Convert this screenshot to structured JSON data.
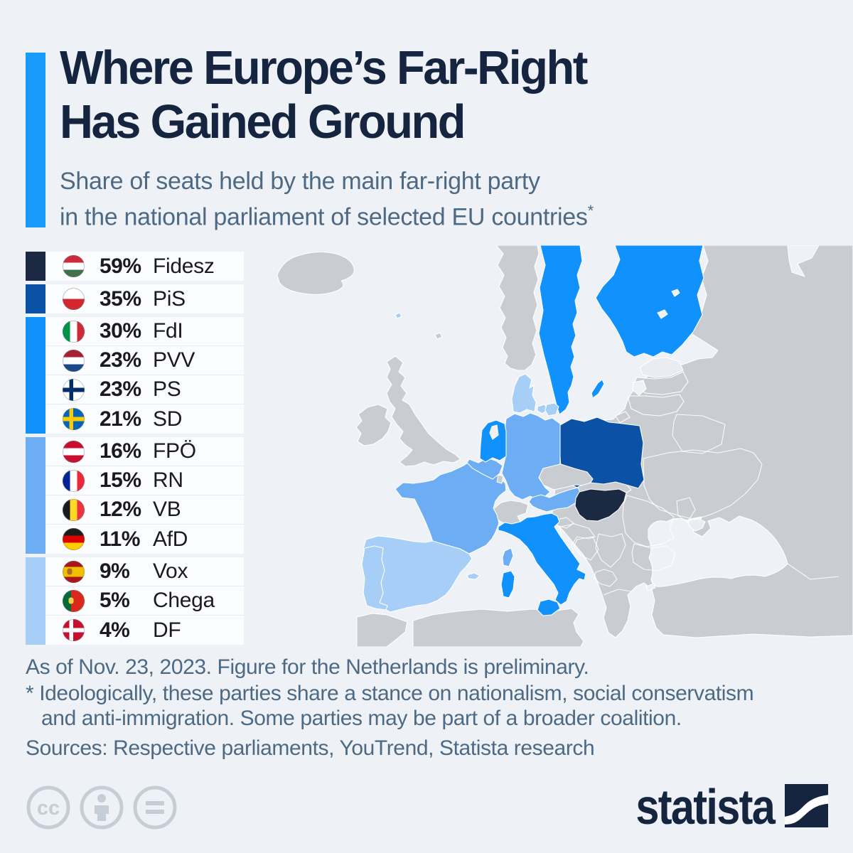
{
  "header": {
    "title_lines": [
      "Where Europe’s Far-Right",
      "Has Gained Ground"
    ],
    "subtitle_lines": [
      "Share of seats held by the main far-right party",
      "in the national parliament of selected EU countries"
    ],
    "subtitle_footnote_mark": "*"
  },
  "chart_data": {
    "type": "choropleth",
    "title": "Where Europe’s Far-Right Has Gained Ground",
    "subtitle": "Share of seats held by the main far-right party in the national parliament of selected EU countries*",
    "unit": "% of seats in national parliament",
    "entries": [
      {
        "country": "Hungary",
        "party": "Fidesz",
        "value": 59,
        "tier": "t1"
      },
      {
        "country": "Poland",
        "party": "PiS",
        "value": 35,
        "tier": "t2"
      },
      {
        "country": "Italy",
        "party": "FdI",
        "value": 30,
        "tier": "t3"
      },
      {
        "country": "Netherlands",
        "party": "PVV",
        "value": 23,
        "tier": "t3"
      },
      {
        "country": "Finland",
        "party": "PS",
        "value": 23,
        "tier": "t3"
      },
      {
        "country": "Sweden",
        "party": "SD",
        "value": 21,
        "tier": "t3"
      },
      {
        "country": "Austria",
        "party": "FPÖ",
        "value": 16,
        "tier": "t4"
      },
      {
        "country": "France",
        "party": "RN",
        "value": 15,
        "tier": "t4"
      },
      {
        "country": "Belgium",
        "party": "VB",
        "value": 12,
        "tier": "t4"
      },
      {
        "country": "Germany",
        "party": "AfD",
        "value": 11,
        "tier": "t4"
      },
      {
        "country": "Spain",
        "party": "Vox",
        "value": 9,
        "tier": "t5"
      },
      {
        "country": "Portugal",
        "party": "Chega",
        "value": 5,
        "tier": "t5"
      },
      {
        "country": "Denmark",
        "party": "DF",
        "value": 4,
        "tier": "t5"
      }
    ],
    "tier_colors": {
      "t1": "#1b2a42",
      "t2": "#0b51a5",
      "t3": "#1191fc",
      "t4": "#6cadf4",
      "t5": "#a7cef7"
    },
    "other_land_color": "#c9ccd0",
    "legend_position": "left"
  },
  "legend": {
    "rows": [
      {
        "id": "hungary",
        "percent": "59%",
        "party": "Fidesz",
        "tier": "t1",
        "flag": {
          "type": "h",
          "stripes": [
            "#ce2939",
            "#ffffff",
            "#436f4d"
          ]
        }
      },
      {
        "id": "poland",
        "percent": "35%",
        "party": "PiS",
        "tier": "t2",
        "flag": {
          "type": "h",
          "stripes": [
            "#ffffff",
            "#d22730"
          ]
        }
      },
      {
        "id": "italy",
        "percent": "30%",
        "party": "FdI",
        "tier": "t3",
        "flag": {
          "type": "v",
          "stripes": [
            "#009246",
            "#ffffff",
            "#ce2b37"
          ]
        }
      },
      {
        "id": "netherlands",
        "percent": "23%",
        "party": "PVV",
        "tier": "t3",
        "flag": {
          "type": "h",
          "stripes": [
            "#a91f32",
            "#ffffff",
            "#1e4785"
          ]
        }
      },
      {
        "id": "finland",
        "percent": "23%",
        "party": "PS",
        "tier": "t3",
        "flag": {
          "type": "nordic",
          "bg": "#ffffff",
          "cross": "#002f6c"
        }
      },
      {
        "id": "sweden",
        "percent": "21%",
        "party": "SD",
        "tier": "t3",
        "flag": {
          "type": "nordic",
          "bg": "#0065bd",
          "cross": "#fecb00"
        }
      },
      {
        "id": "austria",
        "percent": "16%",
        "party": "FPÖ",
        "tier": "t4",
        "flag": {
          "type": "h",
          "stripes": [
            "#c8102e",
            "#ffffff",
            "#c8102e"
          ]
        }
      },
      {
        "id": "france",
        "percent": "15%",
        "party": "RN",
        "tier": "t4",
        "flag": {
          "type": "v",
          "stripes": [
            "#002395",
            "#ffffff",
            "#ed2939"
          ]
        }
      },
      {
        "id": "belgium",
        "percent": "12%",
        "party": "VB",
        "tier": "t4",
        "flag": {
          "type": "v",
          "stripes": [
            "#1a1a1e",
            "#fdda25",
            "#ef3340"
          ]
        }
      },
      {
        "id": "germany",
        "percent": "11%",
        "party": "AfD",
        "tier": "t4",
        "flag": {
          "type": "h",
          "stripes": [
            "#1c1c1a",
            "#dd0000",
            "#ffce00"
          ]
        }
      },
      {
        "id": "spain",
        "percent": "9%",
        "party": "Vox",
        "tier": "t5",
        "flag": {
          "type": "h",
          "stripes": [
            "#aa151b",
            "#f1bf00",
            "#aa151b"
          ],
          "widths": [
            27,
            46,
            27
          ],
          "emblem": {
            "color": "#b06a2a",
            "x": "32%"
          }
        }
      },
      {
        "id": "portugal",
        "percent": "5%",
        "party": "Chega",
        "tier": "t5",
        "flag": {
          "type": "v",
          "stripes": [
            "#046a38",
            "#da291c"
          ],
          "widths": [
            38,
            62
          ],
          "emblem": {
            "color": "#efd24b",
            "x": "38%"
          }
        }
      },
      {
        "id": "denmark",
        "percent": "4%",
        "party": "DF",
        "tier": "t5",
        "flag": {
          "type": "nordic",
          "bg": "#c8102e",
          "cross": "#ffffff"
        }
      }
    ],
    "group_last_indexes": [
      0,
      1,
      5,
      9,
      12
    ]
  },
  "footer": {
    "as_of": "As of Nov. 23, 2023. Figure for the Netherlands is preliminary.",
    "note_line1": "* Ideologically, these parties share a stance on nationalism, social conservatism",
    "note_line2": "and anti-immigration. Some parties may be part of a broader coalition.",
    "sources": "Sources: Respective parliaments, YouTrend, Statista research"
  },
  "branding": {
    "wordmark": "statista",
    "license_icons": [
      "cc",
      "by",
      "nd"
    ]
  },
  "colors": {
    "bg": "#eef2f7",
    "row": "#fbfcfd",
    "rowline": "#e7ebf0",
    "land": "#c9ccd0",
    "landlight": "#e9edf2",
    "t1": "#1b2a42",
    "t2": "#0b51a5",
    "t3": "#1191fc",
    "t4": "#6cadf4",
    "t5": "#a7cef7",
    "accent": "#199bfc",
    "title": "#15253f",
    "slate": "#4d6983",
    "text": "#1b1b1d",
    "cc": "#c5ced7"
  }
}
